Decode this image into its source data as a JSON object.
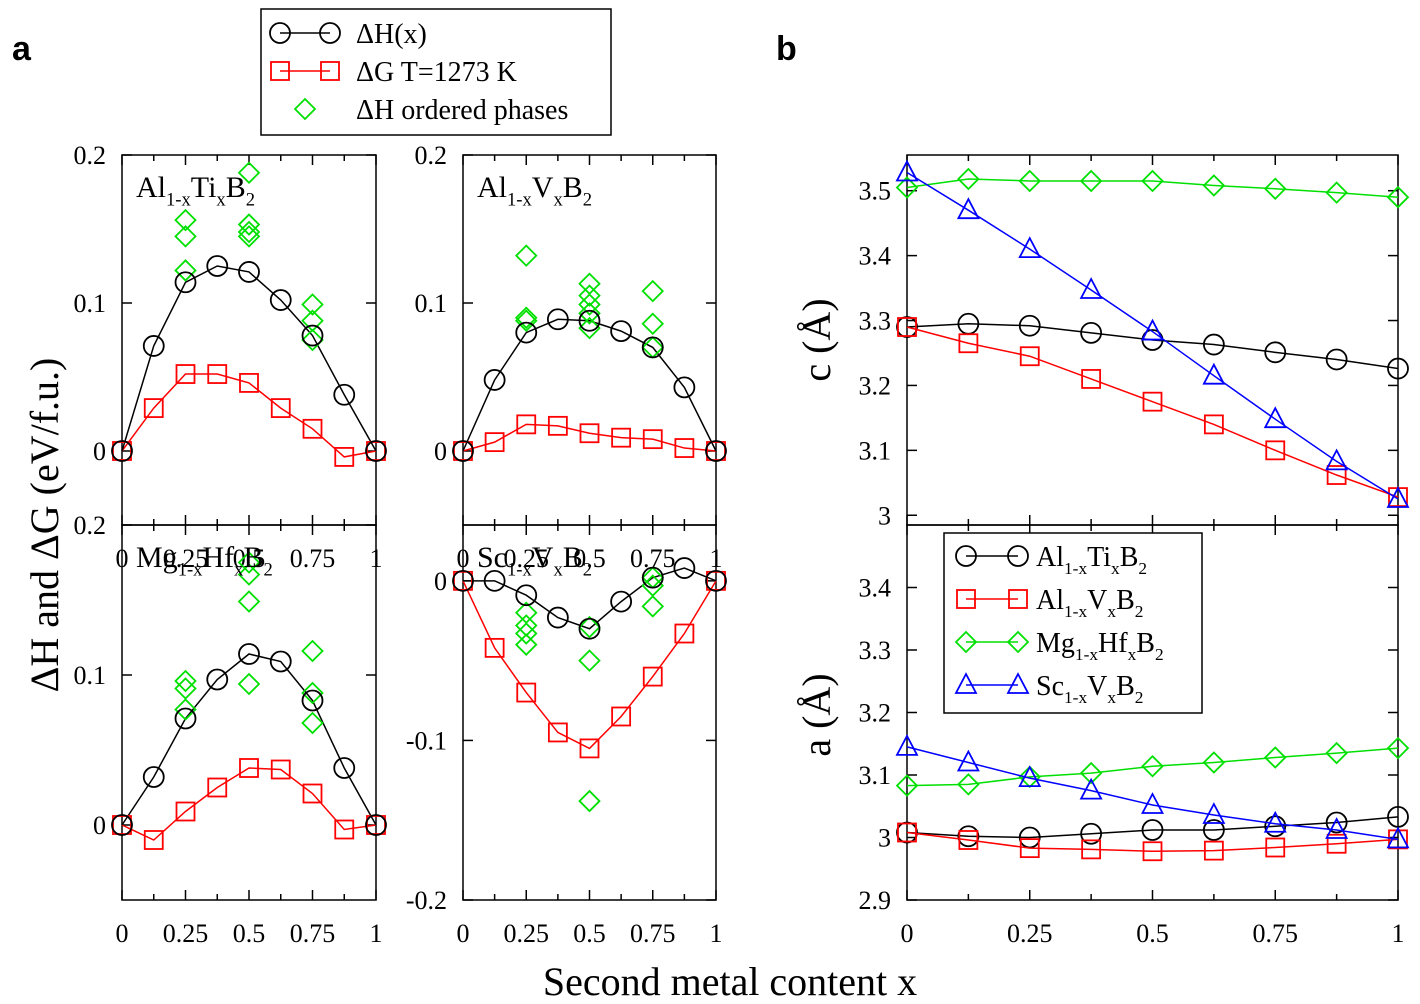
{
  "panel_labels": {
    "a": "a",
    "b": "b"
  },
  "top_legend": {
    "items": [
      {
        "label": "ΔH(x)",
        "marker": "circle",
        "color": "#000000",
        "line": true
      },
      {
        "label": "ΔG T=1273 K",
        "marker": "square",
        "color": "#ff0000",
        "line": true
      },
      {
        "label": "ΔH ordered phases",
        "marker": "diamond",
        "color": "#00e000",
        "line": false
      }
    ]
  },
  "axis_titles": {
    "a_y": "ΔH and ΔG (eV/f.u.)",
    "x": "Second metal content x",
    "b_c_y": "c (Å)",
    "b_a_y": "a (Å)"
  },
  "colors": {
    "black": "#000000",
    "red": "#ff0000",
    "green": "#00e000",
    "blue": "#0000ff"
  },
  "chart_data": [
    {
      "id": "AlTi",
      "type": "line",
      "label": {
        "base1": "Al",
        "sub1": "1-x",
        "base2": "Ti",
        "sub2": "x",
        "base3": "B",
        "sub3": "2"
      },
      "xlim": [
        0,
        1
      ],
      "ylim": [
        -0.05,
        0.2
      ],
      "x_ticks": [
        "0",
        "0.25",
        "0.5",
        "0.75",
        "1"
      ],
      "y_ticks": [
        {
          "v": 0,
          "t": "0"
        },
        {
          "v": 0.1,
          "t": "0.1"
        },
        {
          "v": 0.2,
          "t": "0.2"
        }
      ],
      "x": [
        0,
        0.125,
        0.25,
        0.375,
        0.5,
        0.625,
        0.75,
        0.875,
        1
      ],
      "dH": [
        0,
        0.071,
        0.114,
        0.125,
        0.121,
        0.102,
        0.078,
        0.038,
        0
      ],
      "dG": [
        0,
        0.029,
        0.052,
        0.052,
        0.046,
        0.029,
        0.015,
        -0.004,
        0
      ],
      "ordered": [
        [
          0.25,
          0.156
        ],
        [
          0.25,
          0.145
        ],
        [
          0.25,
          0.122
        ],
        [
          0.5,
          0.188
        ],
        [
          0.5,
          0.153
        ],
        [
          0.5,
          0.148
        ],
        [
          0.5,
          0.145
        ],
        [
          0.75,
          0.099
        ],
        [
          0.75,
          0.088
        ],
        [
          0.75,
          0.075
        ]
      ]
    },
    {
      "id": "AlV",
      "type": "line",
      "label": {
        "base1": "Al",
        "sub1": "1-x",
        "base2": "V",
        "sub2": "x",
        "base3": "B",
        "sub3": "2"
      },
      "xlim": [
        0,
        1
      ],
      "ylim": [
        -0.05,
        0.2
      ],
      "x_ticks": [
        "0",
        "0.25",
        "0.5",
        "0.75",
        "1"
      ],
      "y_ticks": [
        {
          "v": 0,
          "t": "0"
        },
        {
          "v": 0.1,
          "t": "0.1"
        },
        {
          "v": 0.2,
          "t": "0.2"
        }
      ],
      "x": [
        0,
        0.125,
        0.25,
        0.375,
        0.5,
        0.625,
        0.75,
        0.875,
        1
      ],
      "dH": [
        0,
        0.048,
        0.08,
        0.089,
        0.088,
        0.081,
        0.07,
        0.043,
        0
      ],
      "dG": [
        0,
        0.006,
        0.018,
        0.017,
        0.012,
        0.009,
        0.008,
        0.002,
        0
      ],
      "ordered": [
        [
          0.25,
          0.132
        ],
        [
          0.25,
          0.09
        ],
        [
          0.25,
          0.088
        ],
        [
          0.5,
          0.113
        ],
        [
          0.5,
          0.105
        ],
        [
          0.5,
          0.099
        ],
        [
          0.5,
          0.093
        ],
        [
          0.5,
          0.083
        ],
        [
          0.75,
          0.108
        ],
        [
          0.75,
          0.086
        ],
        [
          0.75,
          0.07
        ]
      ]
    },
    {
      "id": "MgHf",
      "type": "line",
      "label": {
        "base1": "Mg",
        "sub1": "1-x",
        "base2": "Hf",
        "sub2": "x",
        "base3": "B",
        "sub3": "2"
      },
      "xlim": [
        0,
        1
      ],
      "ylim": [
        -0.05,
        0.2
      ],
      "x_ticks": [
        "0",
        "0.25",
        "0.5",
        "0.75",
        "1"
      ],
      "y_ticks": [
        {
          "v": 0,
          "t": "0"
        },
        {
          "v": 0.1,
          "t": "0.1"
        },
        {
          "v": 0.2,
          "t": "0.2"
        }
      ],
      "x": [
        0,
        0.125,
        0.25,
        0.375,
        0.5,
        0.625,
        0.75,
        0.875,
        1
      ],
      "dH": [
        0,
        0.032,
        0.071,
        0.097,
        0.114,
        0.109,
        0.083,
        0.038,
        0
      ],
      "dG": [
        0,
        -0.01,
        0.009,
        0.025,
        0.038,
        0.037,
        0.021,
        -0.003,
        0
      ],
      "ordered": [
        [
          0.25,
          0.096
        ],
        [
          0.25,
          0.091
        ],
        [
          0.25,
          0.077
        ],
        [
          0.5,
          0.175
        ],
        [
          0.5,
          0.167
        ],
        [
          0.5,
          0.149
        ],
        [
          0.5,
          0.094
        ],
        [
          0.75,
          0.116
        ],
        [
          0.75,
          0.088
        ],
        [
          0.75,
          0.068
        ]
      ]
    },
    {
      "id": "ScV",
      "type": "line",
      "label": {
        "base1": "Sc",
        "sub1": "1-x",
        "base2": "V",
        "sub2": "x",
        "base3": "B",
        "sub3": "2"
      },
      "xlim": [
        0,
        1
      ],
      "ylim": [
        -0.2,
        0.035
      ],
      "x_ticks": [
        "0",
        "0.25",
        "0.5",
        "0.75",
        "1"
      ],
      "y_ticks": [
        {
          "v": 0,
          "t": "0"
        },
        {
          "v": -0.1,
          "t": "-0.1"
        },
        {
          "v": -0.2,
          "t": "-0.2"
        }
      ],
      "x": [
        0,
        0.125,
        0.25,
        0.375,
        0.5,
        0.625,
        0.75,
        0.875,
        1
      ],
      "dH": [
        0,
        0,
        -0.009,
        -0.023,
        -0.03,
        -0.013,
        0.002,
        0.008,
        0
      ],
      "dG": [
        0,
        -0.042,
        -0.07,
        -0.095,
        -0.105,
        -0.085,
        -0.06,
        -0.033,
        0
      ],
      "ordered": [
        [
          0.25,
          -0.02
        ],
        [
          0.25,
          -0.028
        ],
        [
          0.25,
          -0.033
        ],
        [
          0.25,
          -0.04
        ],
        [
          0.5,
          -0.029
        ],
        [
          0.5,
          -0.05
        ],
        [
          0.5,
          -0.138
        ],
        [
          0.75,
          0.002
        ],
        [
          0.75,
          -0.003
        ],
        [
          0.75,
          -0.016
        ]
      ]
    },
    {
      "id": "c",
      "type": "line",
      "ylabel": "c (Å)",
      "xlim": [
        0,
        1
      ],
      "ylim": [
        2.985,
        3.555
      ],
      "x_ticks": [],
      "y_ticks": [
        {
          "v": 3.0,
          "t": "3"
        },
        {
          "v": 3.1,
          "t": "3.1"
        },
        {
          "v": 3.2,
          "t": "3.2"
        },
        {
          "v": 3.3,
          "t": "3.3"
        },
        {
          "v": 3.4,
          "t": "3.4"
        },
        {
          "v": 3.5,
          "t": "3.5"
        }
      ],
      "x": [
        0,
        0.125,
        0.25,
        0.375,
        0.5,
        0.625,
        0.75,
        0.875,
        1
      ],
      "series": [
        {
          "name": "AlTi",
          "color": "#000000",
          "marker": "circle",
          "values": [
            3.29,
            3.295,
            3.292,
            3.281,
            3.27,
            3.263,
            3.251,
            3.24,
            3.226
          ]
        },
        {
          "name": "AlV",
          "color": "#ff0000",
          "marker": "square",
          "values": [
            3.29,
            3.265,
            3.245,
            3.21,
            3.175,
            3.14,
            3.1,
            3.062,
            3.028
          ]
        },
        {
          "name": "MgHf",
          "color": "#00e000",
          "marker": "diamond",
          "values": [
            3.505,
            3.518,
            3.515,
            3.515,
            3.515,
            3.508,
            3.503,
            3.497,
            3.49
          ]
        },
        {
          "name": "ScV",
          "color": "#0000ff",
          "marker": "triangle",
          "values": [
            3.528,
            3.47,
            3.41,
            3.347,
            3.283,
            3.215,
            3.148,
            3.083,
            3.025
          ]
        }
      ]
    },
    {
      "id": "a",
      "type": "line",
      "ylabel": "a (Å)",
      "xlim": [
        0,
        1
      ],
      "ylim": [
        2.9,
        3.5
      ],
      "x_ticks": [
        "0",
        "0.25",
        "0.5",
        "0.75",
        "1"
      ],
      "y_ticks": [
        {
          "v": 2.9,
          "t": "2.9"
        },
        {
          "v": 3.0,
          "t": "3"
        },
        {
          "v": 3.1,
          "t": "3.1"
        },
        {
          "v": 3.2,
          "t": "3.2"
        },
        {
          "v": 3.3,
          "t": "3.3"
        },
        {
          "v": 3.4,
          "t": "3.4"
        }
      ],
      "x": [
        0,
        0.125,
        0.25,
        0.375,
        0.5,
        0.625,
        0.75,
        0.875,
        1
      ],
      "series": [
        {
          "name": "AlTi",
          "color": "#000000",
          "marker": "circle",
          "values": [
            3.008,
            3.002,
            3.0,
            3.006,
            3.012,
            3.012,
            3.018,
            3.024,
            3.033
          ]
        },
        {
          "name": "AlV",
          "color": "#ff0000",
          "marker": "square",
          "values": [
            3.008,
            2.996,
            2.983,
            2.981,
            2.978,
            2.979,
            2.984,
            2.99,
            2.997
          ]
        },
        {
          "name": "MgHf",
          "color": "#00e000",
          "marker": "diamond",
          "values": [
            3.083,
            3.085,
            3.097,
            3.103,
            3.114,
            3.12,
            3.128,
            3.135,
            3.143
          ]
        },
        {
          "name": "ScV",
          "color": "#0000ff",
          "marker": "triangle",
          "values": [
            3.145,
            3.12,
            3.095,
            3.075,
            3.052,
            3.036,
            3.022,
            3.012,
            2.997
          ]
        }
      ],
      "legend": [
        {
          "base1": "Al",
          "sub1": "1-x",
          "base2": "Ti",
          "sub2": "x",
          "base3": "B",
          "sub3": "2",
          "color": "#000000",
          "marker": "circle"
        },
        {
          "base1": "Al",
          "sub1": "1-x",
          "base2": "V",
          "sub2": "x",
          "base3": "B",
          "sub3": "2",
          "color": "#ff0000",
          "marker": "square"
        },
        {
          "base1": "Mg",
          "sub1": "1-x",
          "base2": "Hf",
          "sub2": "x",
          "base3": "B",
          "sub3": "2",
          "color": "#00e000",
          "marker": "diamond"
        },
        {
          "base1": "Sc",
          "sub1": "1-x",
          "base2": "V",
          "sub2": "x",
          "base3": "B",
          "sub3": "2",
          "color": "#0000ff",
          "marker": "triangle"
        }
      ]
    }
  ]
}
